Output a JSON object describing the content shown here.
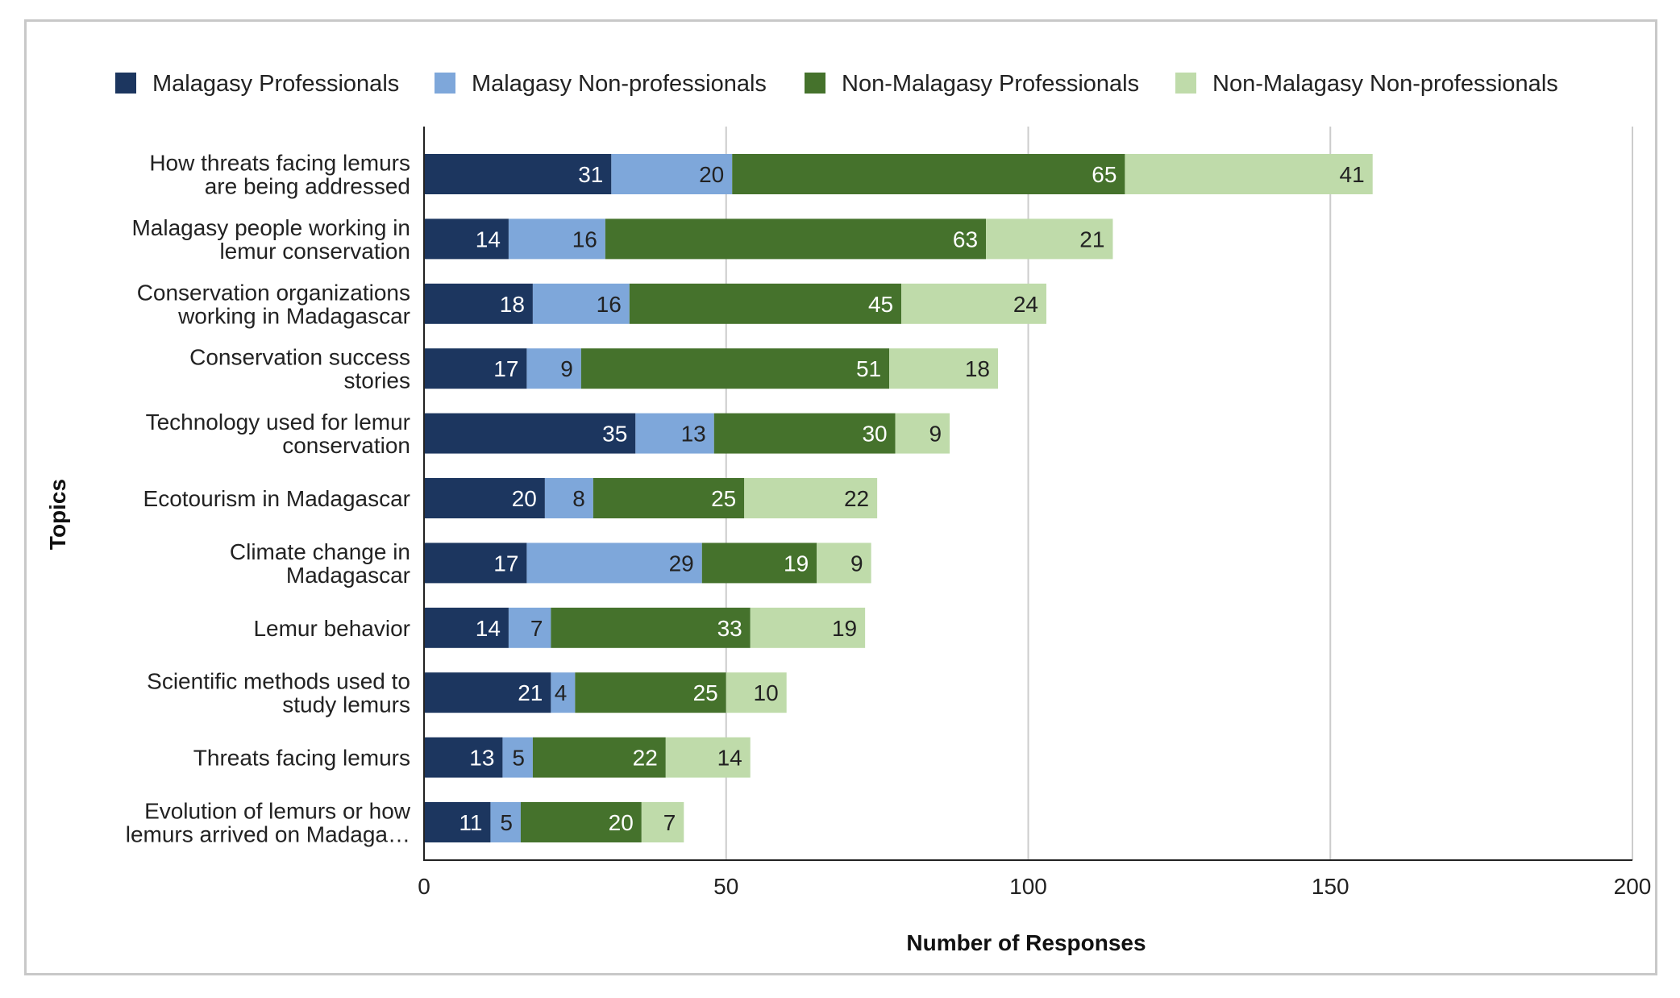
{
  "chart_data": {
    "type": "bar",
    "orientation": "horizontal",
    "stacked": true,
    "xlabel": "Number of Responses",
    "ylabel": "Topics",
    "xlim": [
      0,
      200
    ],
    "xticks": [
      "0",
      "50",
      "100",
      "150",
      "200"
    ],
    "grid": true,
    "legend_position": "top",
    "categories": [
      [
        "How threats facing lemurs",
        "are being addressed"
      ],
      [
        "Malagasy people working in",
        "lemur conservation"
      ],
      [
        "Conservation organizations",
        "working in Madagascar"
      ],
      [
        "Conservation success",
        "stories"
      ],
      [
        "Technology used for lemur",
        "conservation"
      ],
      [
        "Ecotourism in Madagascar"
      ],
      [
        "Climate change in",
        "Madagascar"
      ],
      [
        "Lemur behavior"
      ],
      [
        "Scientific methods used to",
        "study lemurs"
      ],
      [
        "Threats facing lemurs"
      ],
      [
        "Evolution of lemurs or how",
        "lemurs arrived on Madaga…"
      ]
    ],
    "series": [
      {
        "name": "Malagasy Professionals",
        "color": "#1c365f",
        "label_color": "#ffffff",
        "values": [
          31,
          14,
          18,
          17,
          35,
          20,
          17,
          14,
          21,
          13,
          11
        ]
      },
      {
        "name": "Malagasy Non-professionals",
        "color": "#7ea7da",
        "label_color": "#222222",
        "values": [
          20,
          16,
          16,
          9,
          13,
          8,
          29,
          7,
          4,
          5,
          5
        ]
      },
      {
        "name": "Non-Malagasy Professionals",
        "color": "#45722c",
        "label_color": "#ffffff",
        "values": [
          65,
          63,
          45,
          51,
          30,
          25,
          19,
          33,
          25,
          22,
          20
        ]
      },
      {
        "name": "Non-Malagasy Non-professionals",
        "color": "#bfdbaa",
        "label_color": "#222222",
        "values": [
          41,
          21,
          24,
          18,
          9,
          22,
          9,
          19,
          10,
          14,
          7
        ]
      }
    ]
  }
}
